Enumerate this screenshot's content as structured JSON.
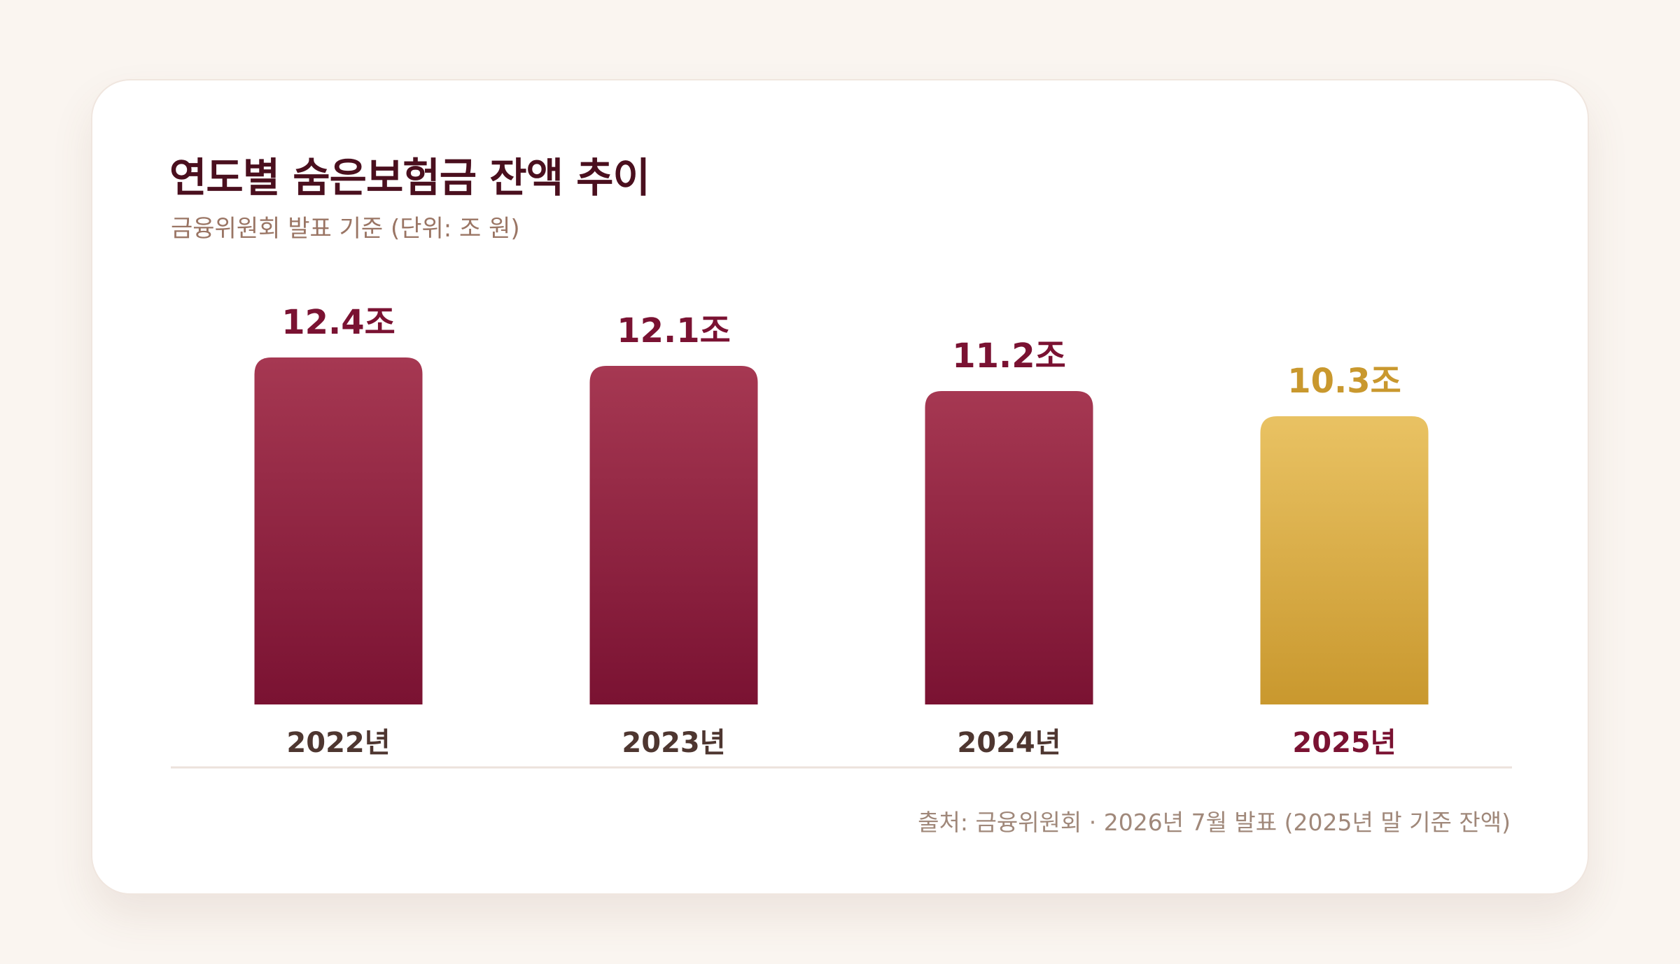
{
  "chart_data": {
    "type": "bar",
    "title": "연도별 숨은보험금 잔액 추이",
    "subtitle": "금융위원회 발표 기준 (단위: 조 원)",
    "categories": [
      "2022년",
      "2023년",
      "2024년",
      "2025년"
    ],
    "values": [
      12.4,
      12.1,
      11.2,
      10.3
    ],
    "value_labels": [
      "12.4조",
      "12.1조",
      "11.2조",
      "10.3조"
    ],
    "highlight_index": 3,
    "ylim": [
      0,
      12.4
    ],
    "grid": false,
    "legend": "none",
    "source": "출처: 금융위원회 · 2026년 7월 발표 (2025년 말 기준 잔액)"
  },
  "colors": {
    "bar_top": "#a63852",
    "bar_bottom": "#7a1232",
    "highlight_top": "#e9c263",
    "highlight_bottom": "#c9982e",
    "value_label": "#7a1232",
    "highlight_value_label": "#c9982e",
    "category_label": "#4e3630",
    "highlight_category_label": "#7a1232",
    "baseline": "#ece2dc"
  }
}
